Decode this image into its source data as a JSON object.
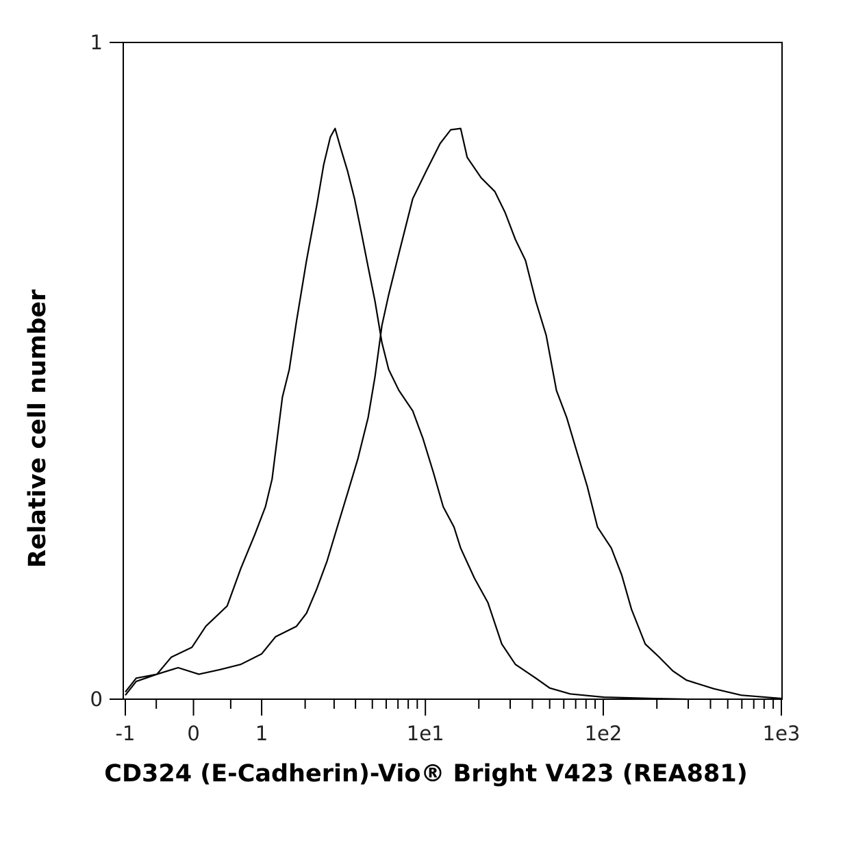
{
  "chart_data": {
    "type": "line",
    "xlabel": "CD324 (E-Cadherin)-Vio® Bright V423 (REA881)",
    "ylabel": "Relative cell number",
    "xscale": "asinh",
    "xlim": [
      -1,
      1000
    ],
    "ylim": [
      0,
      1
    ],
    "xticks": [
      -1,
      0,
      1,
      {
        "value": 10,
        "label": "1e1"
      },
      {
        "value": 100,
        "label": "1e2"
      },
      {
        "value": 1000,
        "label": "1e3"
      }
    ],
    "xminorticks": [
      -0.5,
      0.5,
      2,
      3,
      4,
      5,
      6,
      7,
      8,
      9,
      20,
      30,
      40,
      50,
      60,
      70,
      80,
      90,
      200,
      300,
      400,
      500,
      600,
      700,
      800,
      900
    ],
    "yticks": [
      0,
      1
    ],
    "series": [
      {
        "color": "#000000",
        "x": [
          -1.0,
          -0.81,
          -0.49,
          -0.29,
          -0.02,
          0.16,
          0.45,
          0.65,
          0.88,
          1.07,
          1.2,
          1.42,
          1.58,
          1.76,
          2.04,
          2.36,
          2.6,
          2.85,
          3.04,
          3.27,
          3.6,
          3.95,
          4.33,
          4.73,
          5.18,
          5.67,
          6.2,
          7.09,
          8.48,
          9.69,
          11.1,
          12.6,
          14.5,
          15.8,
          18.9,
          22.5,
          26.9,
          32.1,
          41.8,
          50,
          65.2,
          101,
          188,
          293
        ],
        "values": [
          0.011,
          0.032,
          0.038,
          0.064,
          0.079,
          0.111,
          0.142,
          0.199,
          0.251,
          0.293,
          0.335,
          0.46,
          0.502,
          0.575,
          0.668,
          0.752,
          0.814,
          0.856,
          0.869,
          0.84,
          0.804,
          0.762,
          0.71,
          0.658,
          0.606,
          0.543,
          0.502,
          0.47,
          0.439,
          0.397,
          0.345,
          0.293,
          0.262,
          0.23,
          0.184,
          0.147,
          0.084,
          0.053,
          0.032,
          0.017,
          0.008,
          0.003,
          0.001,
          0
        ]
      },
      {
        "color": "#000000",
        "x": [
          -1.0,
          -0.81,
          -0.49,
          -0.2,
          0.07,
          0.35,
          0.65,
          1.0,
          1.27,
          1.76,
          2.04,
          2.36,
          2.72,
          3.13,
          3.6,
          4.13,
          4.73,
          5.18,
          5.67,
          6.2,
          7.09,
          8.48,
          10.1,
          12.1,
          13.9,
          15.8,
          17.2,
          20.6,
          24.6,
          28.1,
          32.1,
          36.6,
          41.8,
          47.8,
          54.6,
          62.3,
          71.2,
          81.3,
          92.8,
          111,
          127,
          144,
          172,
          206,
          246,
          293,
          417,
          595,
          1000
        ],
        "values": [
          0.006,
          0.027,
          0.038,
          0.048,
          0.038,
          0.045,
          0.053,
          0.069,
          0.095,
          0.111,
          0.131,
          0.168,
          0.21,
          0.262,
          0.314,
          0.366,
          0.429,
          0.491,
          0.569,
          0.616,
          0.679,
          0.762,
          0.804,
          0.846,
          0.867,
          0.869,
          0.825,
          0.794,
          0.773,
          0.741,
          0.7,
          0.668,
          0.606,
          0.554,
          0.47,
          0.429,
          0.376,
          0.324,
          0.262,
          0.23,
          0.189,
          0.137,
          0.084,
          0.064,
          0.043,
          0.029,
          0.016,
          0.006,
          0.001
        ]
      }
    ]
  }
}
